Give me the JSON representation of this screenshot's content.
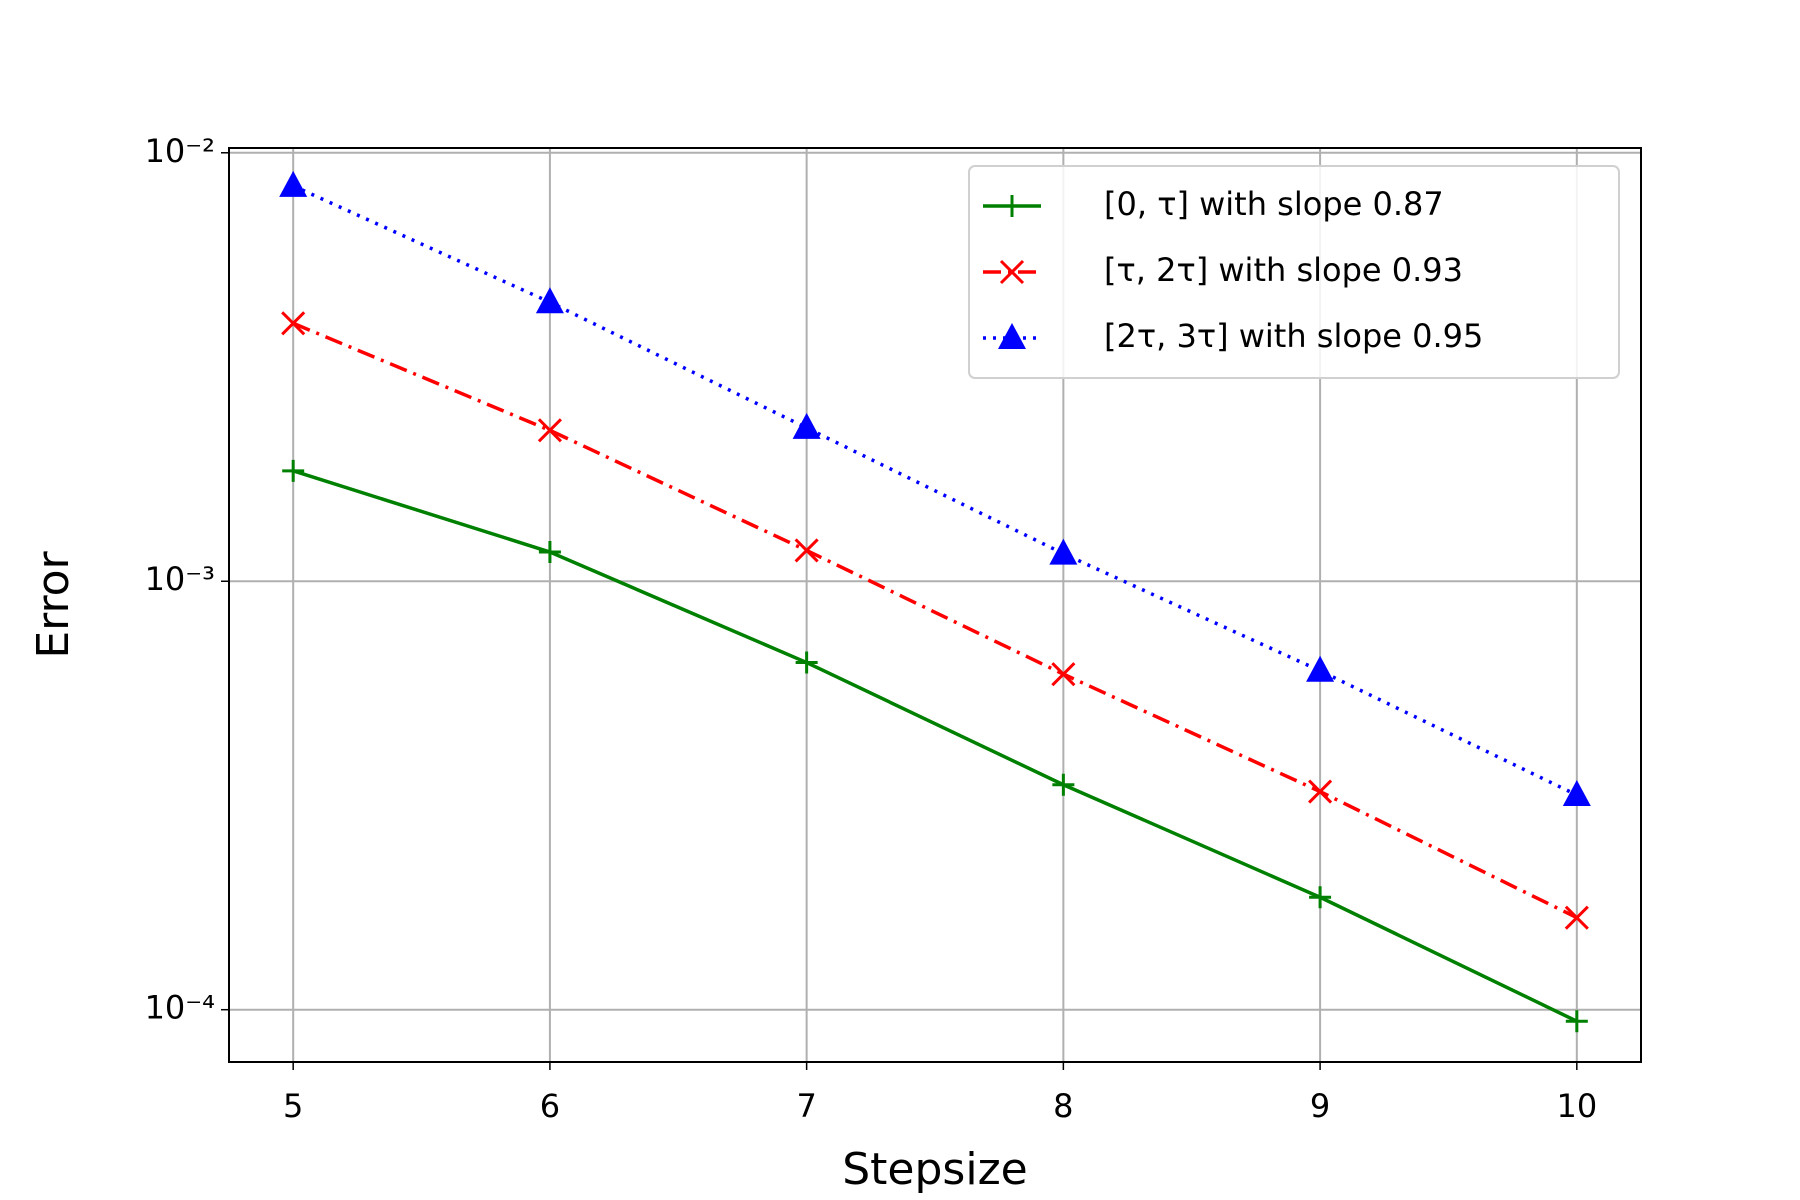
{
  "chart_data": {
    "type": "line",
    "x_label": "Stepsize",
    "y_label": "Error",
    "x": [
      5,
      6,
      7,
      8,
      9,
      10
    ],
    "series": [
      {
        "name": "[0, τ] with slope 0.87",
        "color": "#008000",
        "linestyle": "solid",
        "marker": "plus",
        "values": [
          0.00181,
          0.00117,
          0.000646,
          0.000335,
          0.000183,
          9.4e-05
        ]
      },
      {
        "name": "[τ, 2τ] with slope 0.93",
        "color": "#ff0000",
        "linestyle": "dashdot",
        "marker": "x",
        "values": [
          0.004,
          0.00225,
          0.00118,
          0.000607,
          0.000323,
          0.000164
        ]
      },
      {
        "name": "[2τ, 3τ] with slope 0.95",
        "color": "#0000ff",
        "linestyle": "dotted",
        "marker": "triangle",
        "values": [
          0.00837,
          0.00448,
          0.00228,
          0.00116,
          0.000618,
          0.000317
        ]
      }
    ],
    "xlim": [
      4.75,
      10.25
    ],
    "xticks": [
      5,
      6,
      7,
      8,
      9,
      10
    ],
    "ylim": [
      7.55e-05,
      0.01026
    ],
    "log_y": true,
    "yticks": [
      {
        "value": 0.0001,
        "label": "10⁻⁴"
      },
      {
        "value": 0.001,
        "label": "10⁻³"
      },
      {
        "value": 0.01,
        "label": "10⁻²"
      }
    ],
    "grid": true,
    "legend": "upper right"
  }
}
